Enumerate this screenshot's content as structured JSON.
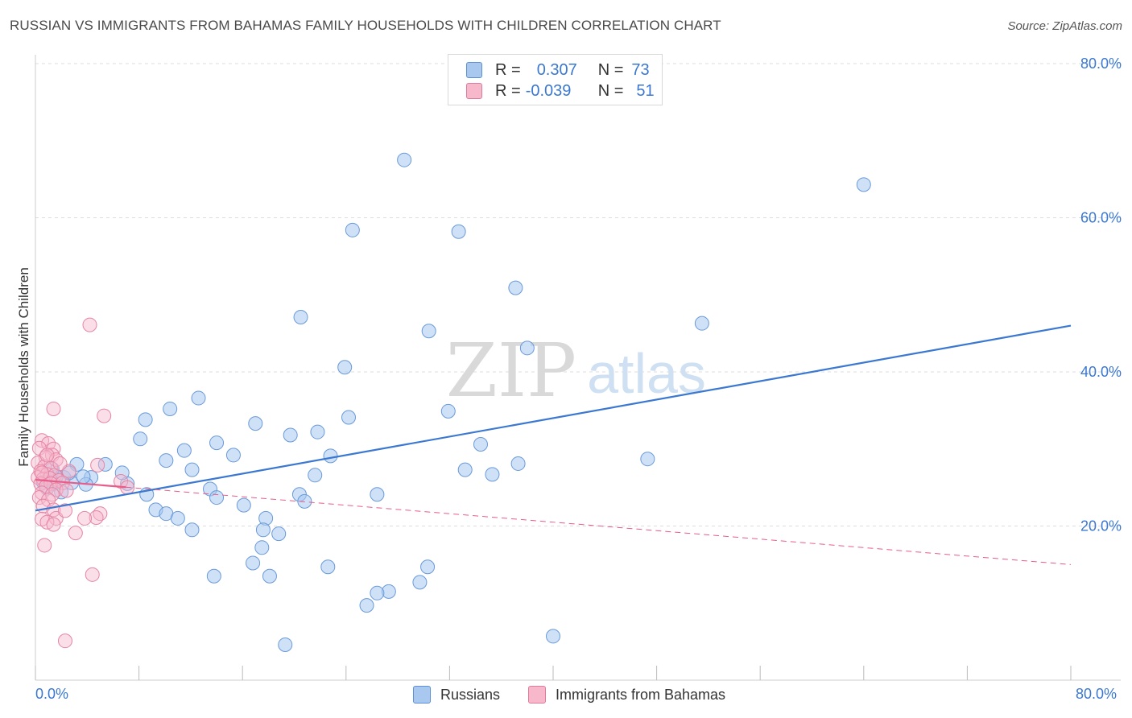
{
  "title": "RUSSIAN VS IMMIGRANTS FROM BAHAMAS FAMILY HOUSEHOLDS WITH CHILDREN CORRELATION CHART",
  "source": "Source: ZipAtlas.com",
  "watermark": {
    "zip": "ZIP",
    "atlas": "atlas"
  },
  "legend_top": [
    {
      "r_label": "R =",
      "r_value": "0.307",
      "n_label": "N =",
      "n_value": "73",
      "color": "#a8c8f0",
      "border": "#5b8fd6"
    },
    {
      "r_label": "R =",
      "r_value": "-0.039",
      "n_label": "N =",
      "n_value": "51",
      "color": "#f7b8cb",
      "border": "#e07a9a"
    }
  ],
  "legend_bottom": [
    {
      "label": "Russians",
      "color": "#a8c8f0",
      "border": "#5b8fd6"
    },
    {
      "label": "Immigrants from Bahamas",
      "color": "#f7b8cb",
      "border": "#e07a9a"
    }
  ],
  "colors": {
    "blue": "#3b78d1",
    "pink": "#e85c8a",
    "grid": "#dddddd"
  },
  "chart_data": {
    "type": "scatter",
    "title": "RUSSIAN VS IMMIGRANTS FROM BAHAMAS FAMILY HOUSEHOLDS WITH CHILDREN CORRELATION CHART",
    "xlabel": "",
    "ylabel": "Family Households with Children",
    "xlim": [
      0,
      80
    ],
    "ylim": [
      0,
      80
    ],
    "x_tick_labels": [
      "0.0%",
      "80.0%"
    ],
    "y_ticks": [
      20,
      40,
      60,
      80
    ],
    "y_tick_labels": [
      "20.0%",
      "40.0%",
      "60.0%",
      "80.0%"
    ],
    "grid": true,
    "series": [
      {
        "name": "Russians",
        "color": "#3b78d1",
        "trend": {
          "x": [
            0,
            80
          ],
          "y": [
            22.0,
            46.0
          ],
          "style": "solid"
        },
        "points": [
          [
            28.5,
            67.5
          ],
          [
            64.0,
            64.3
          ],
          [
            24.5,
            58.4
          ],
          [
            32.7,
            58.2
          ],
          [
            37.1,
            50.9
          ],
          [
            20.5,
            47.1
          ],
          [
            51.5,
            46.3
          ],
          [
            30.4,
            45.3
          ],
          [
            38.0,
            43.1
          ],
          [
            23.9,
            40.6
          ],
          [
            12.6,
            36.6
          ],
          [
            10.4,
            35.2
          ],
          [
            31.9,
            34.9
          ],
          [
            24.2,
            34.1
          ],
          [
            8.5,
            33.8
          ],
          [
            17.0,
            33.3
          ],
          [
            21.8,
            32.2
          ],
          [
            19.7,
            31.8
          ],
          [
            8.1,
            31.3
          ],
          [
            14.0,
            30.8
          ],
          [
            34.4,
            30.6
          ],
          [
            11.5,
            29.8
          ],
          [
            15.3,
            29.2
          ],
          [
            22.8,
            29.1
          ],
          [
            47.3,
            28.7
          ],
          [
            10.1,
            28.5
          ],
          [
            37.3,
            28.1
          ],
          [
            5.4,
            28.0
          ],
          [
            3.2,
            28.0
          ],
          [
            33.2,
            27.3
          ],
          [
            12.1,
            27.3
          ],
          [
            21.6,
            26.6
          ],
          [
            2.2,
            26.3
          ],
          [
            4.3,
            26.3
          ],
          [
            1.6,
            26.4
          ],
          [
            2.8,
            25.6
          ],
          [
            7.1,
            25.5
          ],
          [
            35.3,
            26.7
          ],
          [
            0.6,
            25.7
          ],
          [
            1.4,
            25.5
          ],
          [
            13.5,
            24.8
          ],
          [
            2.0,
            24.4
          ],
          [
            3.9,
            25.4
          ],
          [
            20.4,
            24.1
          ],
          [
            8.6,
            24.1
          ],
          [
            26.4,
            24.1
          ],
          [
            20.8,
            23.2
          ],
          [
            14.0,
            23.7
          ],
          [
            16.1,
            22.7
          ],
          [
            9.3,
            22.1
          ],
          [
            10.1,
            21.6
          ],
          [
            11.0,
            21.0
          ],
          [
            17.8,
            21.0
          ],
          [
            17.6,
            19.5
          ],
          [
            18.8,
            19.0
          ],
          [
            12.1,
            19.5
          ],
          [
            17.5,
            17.2
          ],
          [
            16.8,
            15.2
          ],
          [
            22.6,
            14.7
          ],
          [
            30.3,
            14.7
          ],
          [
            18.1,
            13.5
          ],
          [
            13.8,
            13.5
          ],
          [
            29.7,
            12.7
          ],
          [
            27.3,
            11.5
          ],
          [
            26.4,
            11.3
          ],
          [
            25.6,
            9.7
          ],
          [
            40.0,
            5.7
          ],
          [
            19.3,
            4.6
          ],
          [
            1.3,
            27.4
          ],
          [
            2.6,
            26.9
          ],
          [
            3.7,
            26.4
          ],
          [
            6.7,
            26.9
          ],
          [
            0.9,
            24.9
          ]
        ]
      },
      {
        "name": "Immigrants from Bahamas",
        "color": "#e85c8a",
        "trend": {
          "x": [
            0,
            80
          ],
          "y": [
            26.0,
            15.0
          ],
          "style": "solid-to-dashed",
          "solid_until_x": 7.0
        },
        "points": [
          [
            4.2,
            46.1
          ],
          [
            1.4,
            35.2
          ],
          [
            5.3,
            34.3
          ],
          [
            0.5,
            31.1
          ],
          [
            1.0,
            30.7
          ],
          [
            0.3,
            30.1
          ],
          [
            1.4,
            30.0
          ],
          [
            1.3,
            29.2
          ],
          [
            0.8,
            28.9
          ],
          [
            1.6,
            28.6
          ],
          [
            0.2,
            28.2
          ],
          [
            0.7,
            27.7
          ],
          [
            4.8,
            27.9
          ],
          [
            1.2,
            27.5
          ],
          [
            0.4,
            27.1
          ],
          [
            2.6,
            27.1
          ],
          [
            0.9,
            26.7
          ],
          [
            1.5,
            26.6
          ],
          [
            0.2,
            26.3
          ],
          [
            0.6,
            26.1
          ],
          [
            1.1,
            26.2
          ],
          [
            1.8,
            25.9
          ],
          [
            0.4,
            25.5
          ],
          [
            1.2,
            25.5
          ],
          [
            0.8,
            25.1
          ],
          [
            2.1,
            25.6
          ],
          [
            1.6,
            24.7
          ],
          [
            2.4,
            24.6
          ],
          [
            6.6,
            25.8
          ],
          [
            7.1,
            25.0
          ],
          [
            0.5,
            24.3
          ],
          [
            1.3,
            24.1
          ],
          [
            0.3,
            23.7
          ],
          [
            1.0,
            23.4
          ],
          [
            0.6,
            22.6
          ],
          [
            1.4,
            22.1
          ],
          [
            1.6,
            21.0
          ],
          [
            2.3,
            22.0
          ],
          [
            5.0,
            21.6
          ],
          [
            4.7,
            21.1
          ],
          [
            3.8,
            21.0
          ],
          [
            0.5,
            20.9
          ],
          [
            0.9,
            20.5
          ],
          [
            1.4,
            20.2
          ],
          [
            3.1,
            19.1
          ],
          [
            0.7,
            17.5
          ],
          [
            4.4,
            13.7
          ],
          [
            2.3,
            5.1
          ],
          [
            0.5,
            26.9
          ],
          [
            1.9,
            28.1
          ],
          [
            0.9,
            29.2
          ]
        ]
      }
    ]
  }
}
